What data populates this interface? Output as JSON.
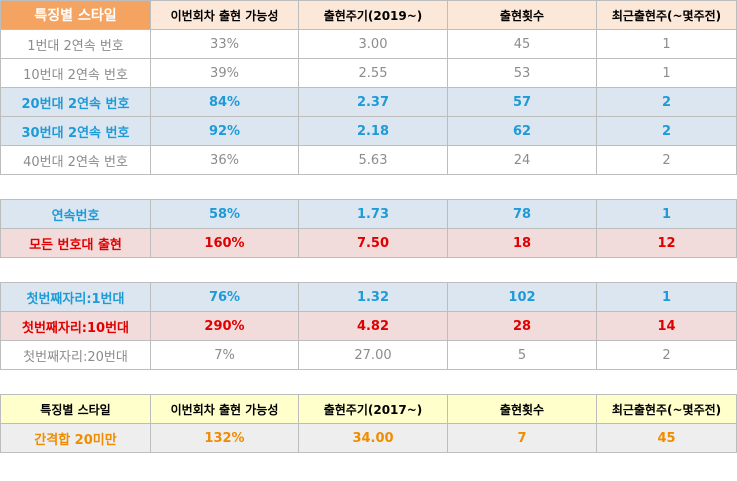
{
  "header": {
    "col1": "특징별 스타일",
    "col2": "이번회차 출현 가능성",
    "col3": "출현주기(2019~)",
    "col4": "출현횟수",
    "col5": "최근출현주(~몇주전)"
  },
  "group1": [
    {
      "style": "gray",
      "label": "1번대 2연속 번호",
      "prob": "33%",
      "cycle": "3.00",
      "count": "45",
      "recent": "1"
    },
    {
      "style": "gray",
      "label": "10번대 2연속 번호",
      "prob": "39%",
      "cycle": "2.55",
      "count": "53",
      "recent": "1"
    },
    {
      "style": "blue",
      "label": "20번대 2연속 번호",
      "prob": "84%",
      "cycle": "2.37",
      "count": "57",
      "recent": "2"
    },
    {
      "style": "blue",
      "label": "30번대 2연속 번호",
      "prob": "92%",
      "cycle": "2.18",
      "count": "62",
      "recent": "2"
    },
    {
      "style": "gray",
      "label": "40번대 2연속 번호",
      "prob": "36%",
      "cycle": "5.63",
      "count": "24",
      "recent": "2"
    }
  ],
  "group2": [
    {
      "style": "blue",
      "label": "연속번호",
      "prob": "58%",
      "cycle": "1.73",
      "count": "78",
      "recent": "1"
    },
    {
      "style": "red",
      "label": "모든 번호대 출현",
      "prob": "160%",
      "cycle": "7.50",
      "count": "18",
      "recent": "12"
    }
  ],
  "group3": [
    {
      "style": "blue",
      "label": "첫번째자리:1번대",
      "prob": "76%",
      "cycle": "1.32",
      "count": "102",
      "recent": "1"
    },
    {
      "style": "red",
      "label": "첫번째자리:10번대",
      "prob": "290%",
      "cycle": "4.82",
      "count": "28",
      "recent": "14"
    },
    {
      "style": "gray",
      "label": "첫번째자리:20번대",
      "prob": "7%",
      "cycle": "27.00",
      "count": "5",
      "recent": "2"
    }
  ],
  "header2": {
    "col1": "특징별 스타일",
    "col2": "이번회차 출현 가능성",
    "col3": "출현주기(2017~)",
    "col4": "출현횟수",
    "col5": "최근출현주(~몇주전)"
  },
  "group4": [
    {
      "style": "orange",
      "label": "간격합 20미만",
      "prob": "132%",
      "cycle": "34.00",
      "count": "7",
      "recent": "45"
    }
  ],
  "colors": {
    "header_accent": "#f4a460",
    "header_light": "#fce8d8",
    "blue_row_bg": "#dce6f1",
    "blue_text": "#1e9bd7",
    "red_row_bg": "#f2dcdb",
    "red_text": "#e00000",
    "yellow_header": "#ffffcc",
    "orange_text": "#f08c00"
  }
}
